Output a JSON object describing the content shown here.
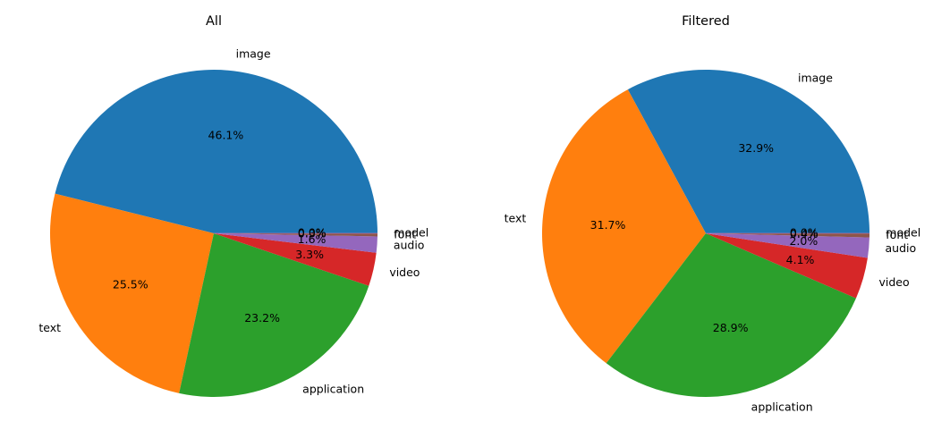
{
  "chart_data": [
    {
      "type": "pie",
      "title": "All",
      "categories": [
        "image",
        "text",
        "application",
        "video",
        "audio",
        "font",
        "model"
      ],
      "values": [
        46.1,
        25.5,
        23.2,
        3.3,
        1.6,
        0.3,
        0.0
      ],
      "percent_labels": [
        "46.1%",
        "25.5%",
        "23.2%",
        "3.3%",
        "1.6%",
        "0.3%",
        "0.0%"
      ],
      "start_angle_deg": 0,
      "direction": "counterclockwise"
    },
    {
      "type": "pie",
      "title": "Filtered",
      "categories": [
        "image",
        "text",
        "application",
        "video",
        "audio",
        "font",
        "model"
      ],
      "values": [
        32.9,
        31.7,
        28.9,
        4.1,
        2.0,
        0.4,
        0.0
      ],
      "percent_labels": [
        "32.9%",
        "31.7%",
        "28.9%",
        "4.1%",
        "2.0%",
        "0.4%",
        "0.0%"
      ],
      "start_angle_deg": 0,
      "direction": "counterclockwise"
    }
  ],
  "colors": [
    "#1f77b4",
    "#ff7f0e",
    "#2ca02c",
    "#d62728",
    "#9467bd",
    "#8c564b",
    "#e377c2"
  ]
}
